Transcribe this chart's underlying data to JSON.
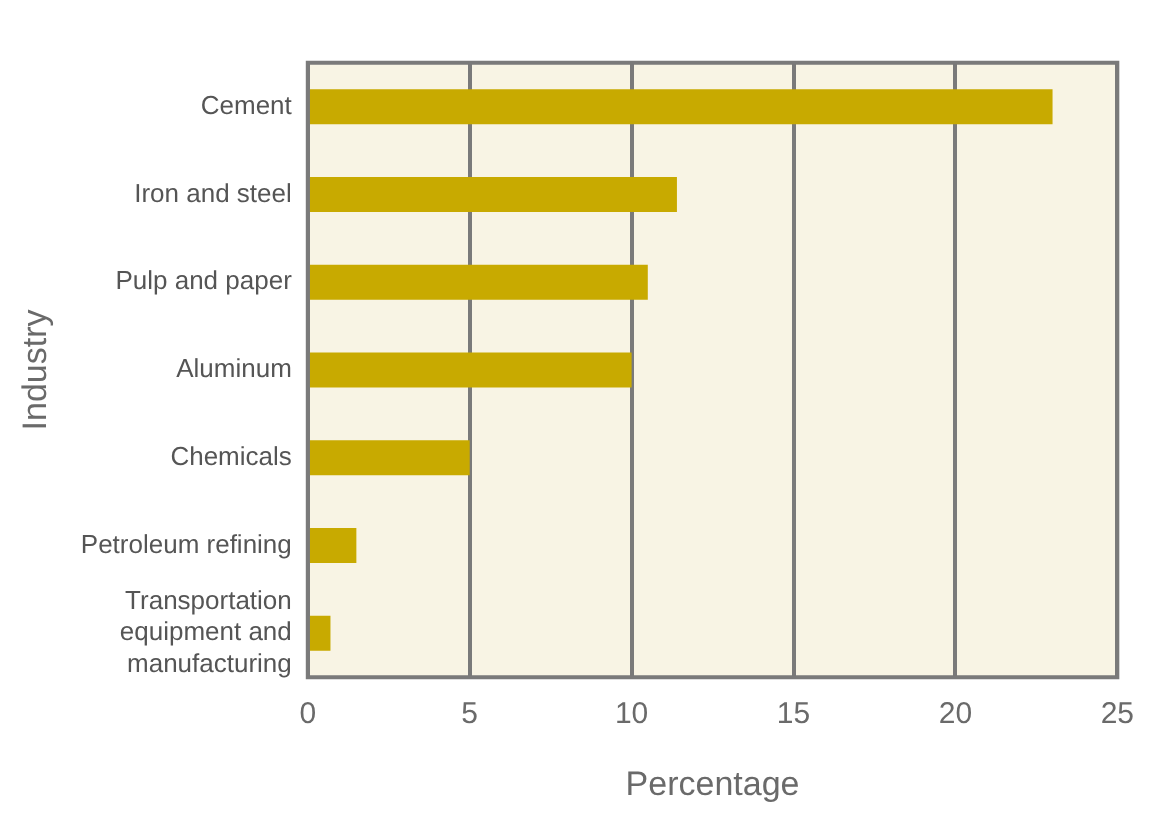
{
  "chart_data": {
    "type": "bar",
    "orientation": "horizontal",
    "xlabel": "Percentage",
    "ylabel": "Industry",
    "categories": [
      "Cement",
      "Iron and steel",
      "Pulp and paper",
      "Aluminum",
      "Chemicals",
      "Petroleum refining",
      "Transportation equipment and manufacturing"
    ],
    "values": [
      23,
      11.4,
      10.5,
      10.0,
      5.0,
      1.5,
      0.7
    ],
    "color": "#c8aa00",
    "xlim": [
      0,
      25
    ],
    "xticks": [
      0,
      5,
      10,
      15,
      20,
      25
    ],
    "grid": "x",
    "legend": false
  }
}
